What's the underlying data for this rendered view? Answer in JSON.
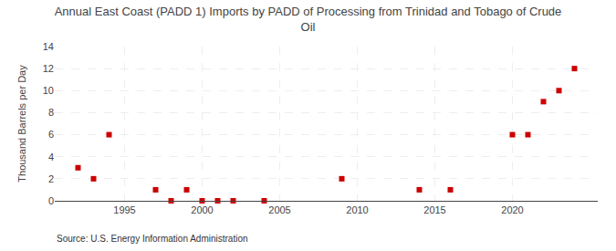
{
  "chart_data": {
    "type": "scatter",
    "title": "Annual East Coast (PADD 1) Imports by PADD of Processing from Trinidad and Tobago of Crude\nOil",
    "ylabel": "Thousand Barrels per Day",
    "annotations": [
      "Source: U.S. Energy Information Administration"
    ],
    "x": [
      1992,
      1993,
      1994,
      1997,
      1998,
      1999,
      2000,
      2001,
      2002,
      2004,
      2009,
      2014,
      2016,
      2020,
      2021,
      2022,
      2023,
      2024
    ],
    "values": [
      3,
      2,
      6,
      1,
      0,
      1,
      0,
      0,
      0,
      0,
      2,
      1,
      1,
      6,
      6,
      9,
      10,
      12
    ],
    "color": "#cc0000",
    "marker": "square",
    "xlim": [
      1990.5,
      2025.5
    ],
    "xticks": [
      1995,
      2000,
      2005,
      2010,
      2015,
      2020
    ],
    "ylim": [
      0,
      14
    ],
    "yticks": [
      0,
      2,
      4,
      6,
      8,
      10,
      12,
      14
    ],
    "grid": true
  }
}
